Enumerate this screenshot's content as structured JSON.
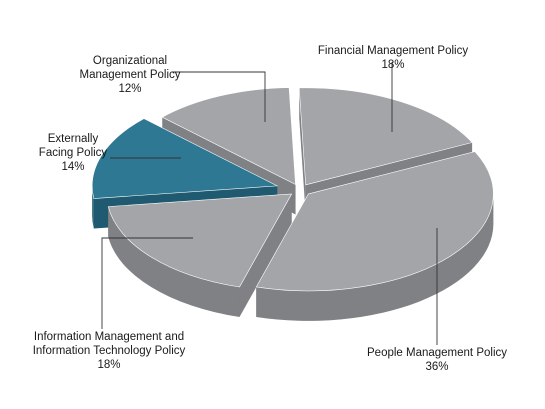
{
  "chart_data": {
    "type": "pie",
    "style": "3d-exploded",
    "slices": [
      {
        "label": "Financial Management Policy",
        "value": 18,
        "value_label": "18%",
        "color": "#a3a5a8",
        "side_color": "#7f8184"
      },
      {
        "label": "People Management Policy",
        "value": 36,
        "value_label": "36%",
        "color": "#a3a5a8",
        "side_color": "#7f8184"
      },
      {
        "label": "Information Management and Information Technology Policy",
        "value": 18,
        "value_label": "18%",
        "color": "#a3a5a8",
        "side_color": "#7f8184"
      },
      {
        "label": "Externally Facing Policy",
        "value": 14,
        "value_label": "14%",
        "color": "#2e7893",
        "side_color": "#1f5a70"
      },
      {
        "label": "Organizational Management Policy",
        "value": 12,
        "value_label": "12%",
        "color": "#a3a5a8",
        "side_color": "#7f8184"
      }
    ],
    "legend": "none"
  }
}
